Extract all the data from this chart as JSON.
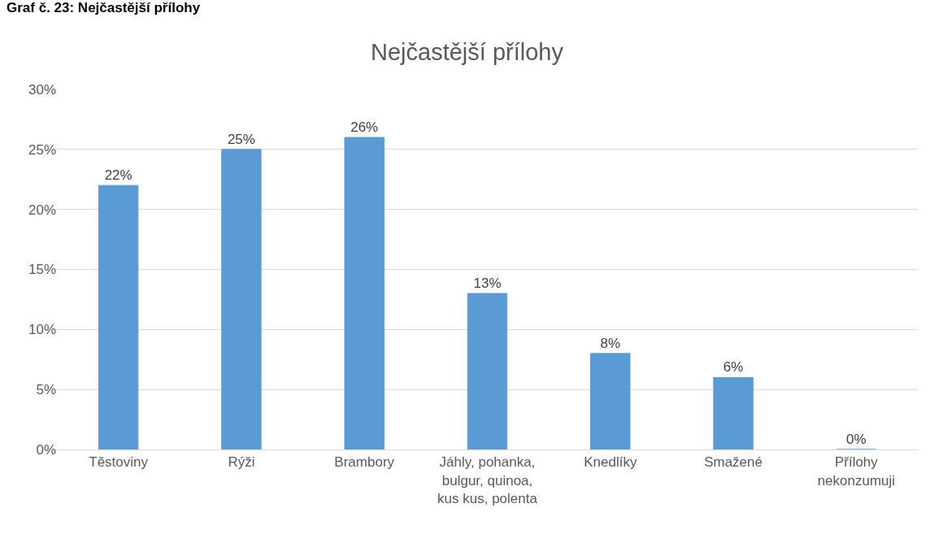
{
  "chart_data": {
    "type": "bar",
    "title": "Nejčastější přílohy",
    "annotations": [
      "Graf č. 23: Nejčastější přílohy"
    ],
    "categories": [
      "Těstoviny",
      "Rýži",
      "Brambory",
      "Jáhly, pohanka, bulgur, quinoa, kus kus, polenta",
      "Knedlíky",
      "Smažené",
      "Přílohy nekonzumuji"
    ],
    "values": [
      22,
      25,
      26,
      13,
      8,
      6,
      0
    ],
    "value_labels": [
      "22%",
      "25%",
      "26%",
      "13%",
      "8%",
      "6%",
      "0%"
    ],
    "color": "#5b9bd5",
    "ylim": [
      0,
      30
    ],
    "yticks": [
      {
        "value": 0,
        "label": "0%"
      },
      {
        "value": 5,
        "label": "5%"
      },
      {
        "value": 10,
        "label": "10%"
      },
      {
        "value": 15,
        "label": "15%"
      },
      {
        "value": 20,
        "label": "20%"
      },
      {
        "value": 25,
        "label": "25%"
      },
      {
        "value": 30,
        "label": "30%"
      }
    ],
    "grid": "y",
    "legend": false
  }
}
